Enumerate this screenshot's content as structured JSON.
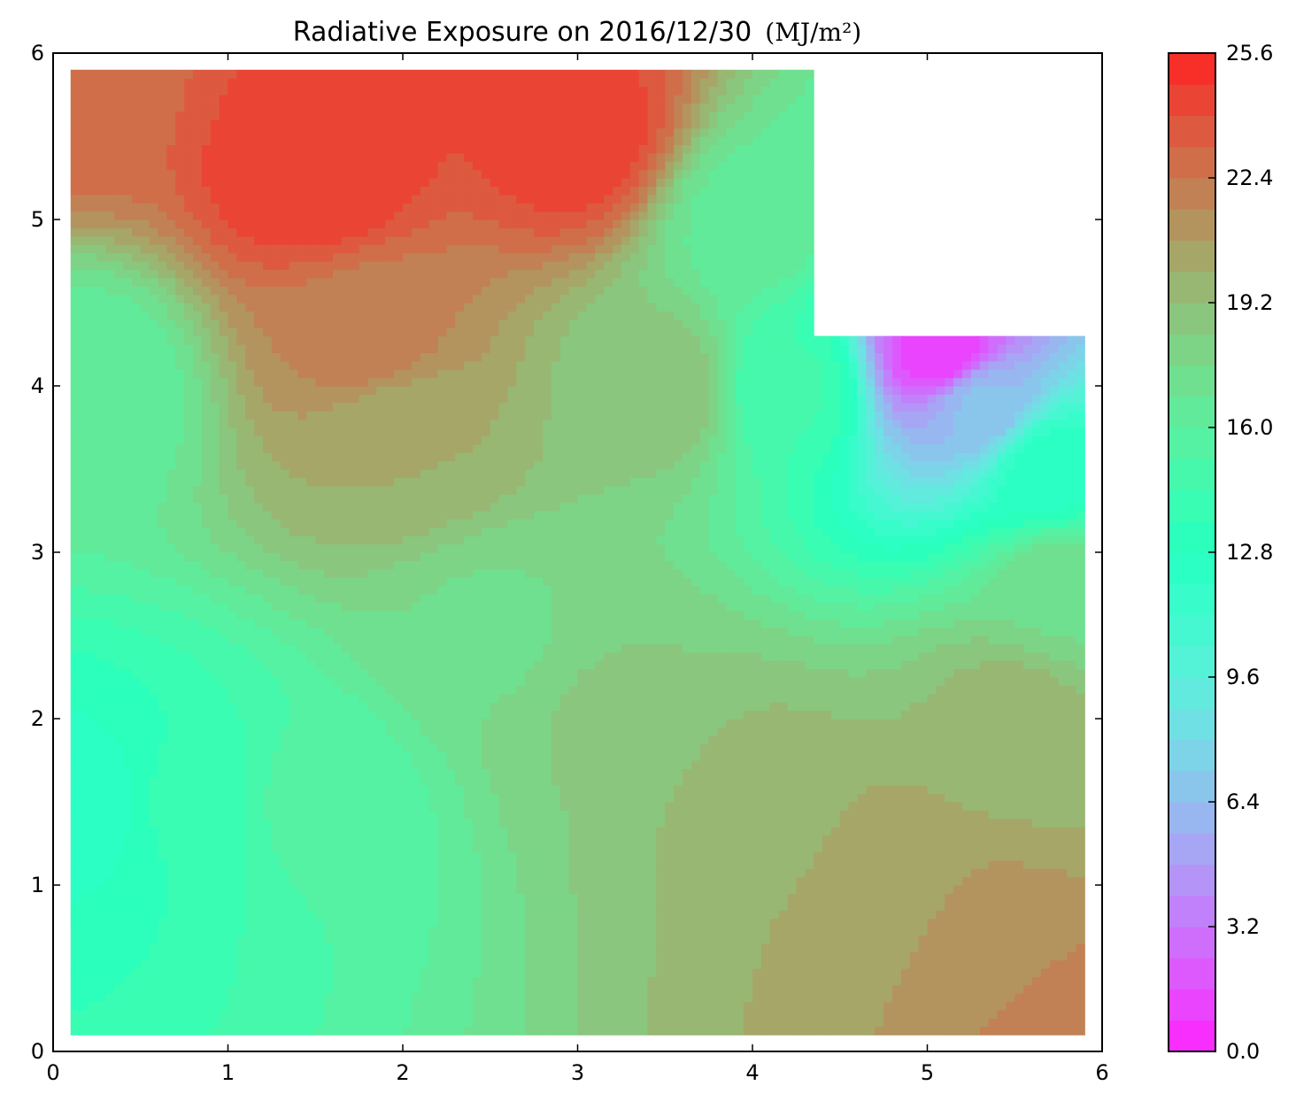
{
  "chart_data": {
    "type": "heatmap",
    "subtype": "filled-contour",
    "title": "Radiative Exposure on 2016/12/30",
    "title_unit": "(MJ/m²)",
    "colormap": "rainbow",
    "xlim": [
      0,
      6
    ],
    "ylim": [
      0,
      6
    ],
    "x_ticks": [
      "0",
      "1",
      "2",
      "3",
      "4",
      "5",
      "6"
    ],
    "y_ticks": [
      "0",
      "1",
      "2",
      "3",
      "4",
      "5",
      "6"
    ],
    "grid": false,
    "colorbar": {
      "location": "right",
      "range": [
        0.0,
        25.6
      ],
      "ticks": [
        "0.0",
        "3.2",
        "6.4",
        "9.6",
        "12.8",
        "16.0",
        "19.2",
        "22.4",
        "25.6"
      ]
    },
    "region": {
      "x": [
        0.1,
        5.9
      ],
      "y": [
        0.1,
        5.9
      ],
      "excluded_corner": {
        "x": [
          4.33,
          5.9
        ],
        "y": [
          4.3,
          5.9
        ]
      }
    },
    "approx_values": [
      {
        "x": 1.5,
        "y": 5.3,
        "value": 24.8
      },
      {
        "x": 3.0,
        "y": 5.5,
        "value": 24.5
      },
      {
        "x": 1.8,
        "y": 4.3,
        "value": 22.0
      },
      {
        "x": 2.0,
        "y": 3.7,
        "value": 20.0
      },
      {
        "x": 3.5,
        "y": 4.0,
        "value": 19.0
      },
      {
        "x": 4.0,
        "y": 5.0,
        "value": 16.5
      },
      {
        "x": 4.2,
        "y": 4.0,
        "value": 14.5
      },
      {
        "x": 5.1,
        "y": 4.2,
        "value": 1.0
      },
      {
        "x": 5.3,
        "y": 3.9,
        "value": 6.5
      },
      {
        "x": 5.7,
        "y": 3.5,
        "value": 12.5
      },
      {
        "x": 5.8,
        "y": 2.8,
        "value": 17.5
      },
      {
        "x": 5.5,
        "y": 2.0,
        "value": 19.5
      },
      {
        "x": 5.3,
        "y": 0.7,
        "value": 21.0
      },
      {
        "x": 4.8,
        "y": 1.0,
        "value": 20.5
      },
      {
        "x": 5.8,
        "y": 0.15,
        "value": 22.0
      },
      {
        "x": 4.0,
        "y": 1.5,
        "value": 19.5
      },
      {
        "x": 3.2,
        "y": 2.0,
        "value": 18.5
      },
      {
        "x": 2.5,
        "y": 2.5,
        "value": 17.5
      },
      {
        "x": 1.5,
        "y": 1.5,
        "value": 15.5
      },
      {
        "x": 0.8,
        "y": 1.5,
        "value": 13.8
      },
      {
        "x": 0.2,
        "y": 1.5,
        "value": 12.5
      },
      {
        "x": 0.15,
        "y": 4.0,
        "value": 16.0
      },
      {
        "x": 0.15,
        "y": 5.8,
        "value": 23.0
      }
    ]
  }
}
